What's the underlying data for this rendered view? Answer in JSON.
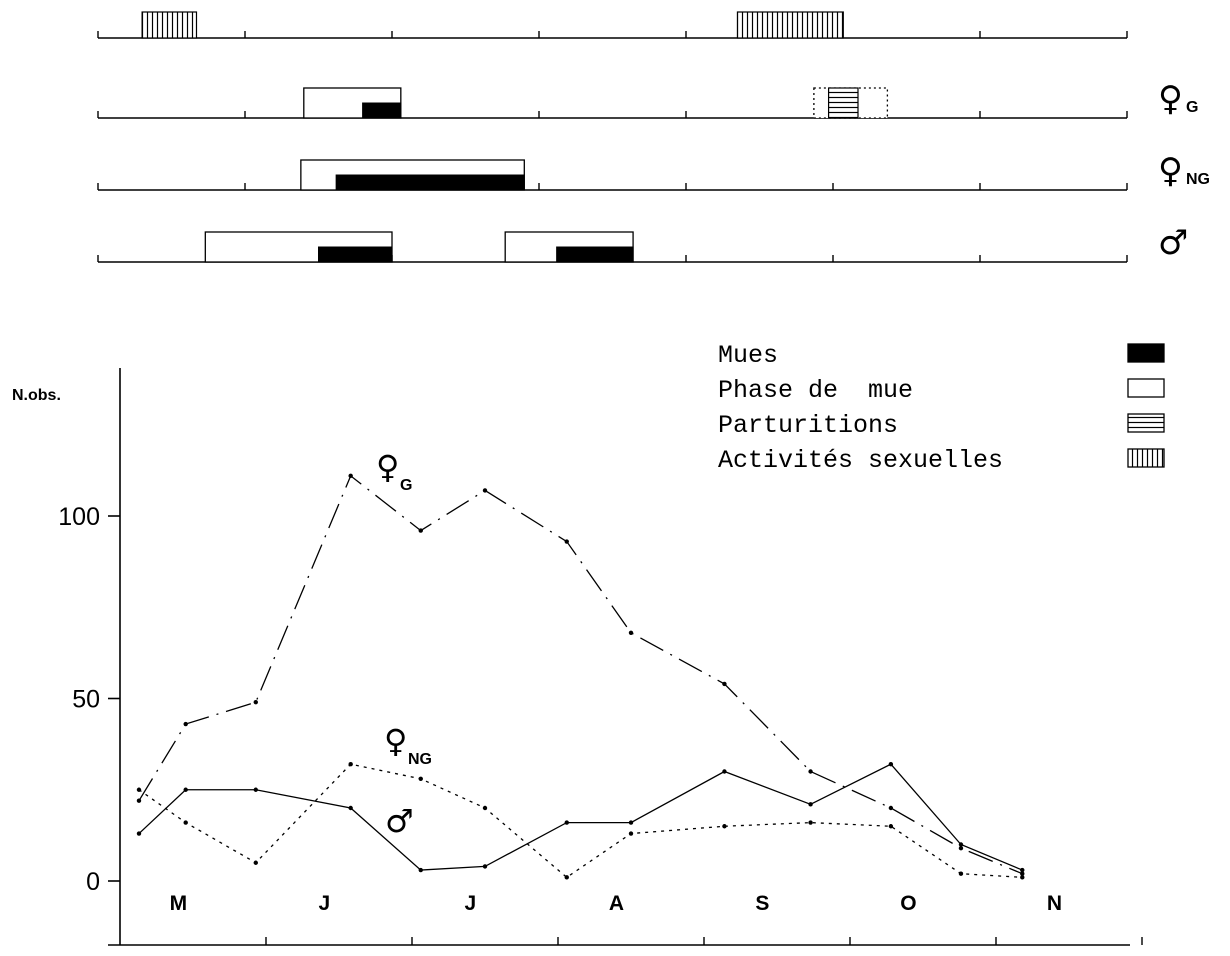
{
  "chart_data": [
    {
      "type": "timeline",
      "months": [
        "M",
        "J",
        "J",
        "A",
        "S",
        "O",
        "N"
      ],
      "legend": [
        {
          "label": "Mues",
          "pattern": "solid"
        },
        {
          "label": "Phase de  mue",
          "pattern": "open"
        },
        {
          "label": "Parturitions",
          "pattern": "horizontal-hatch"
        },
        {
          "label": "Activités sexuelles",
          "pattern": "vertical-hatch"
        }
      ],
      "rows": [
        {
          "label": "",
          "sex": "",
          "subscript": "",
          "bars": [
            {
              "kind": "activite_sexuelle",
              "start": 0.3,
              "end": 0.67
            },
            {
              "kind": "activite_sexuelle",
              "start": 4.35,
              "end": 5.07
            }
          ]
        },
        {
          "label": "G",
          "sex": "♀",
          "subscript": "G",
          "bars": [
            {
              "kind": "phase_mue",
              "start": 1.4,
              "end": 2.06
            },
            {
              "kind": "mue",
              "start": 1.8,
              "end": 2.06
            },
            {
              "kind": "phase_mue",
              "start": 4.87,
              "end": 5.37,
              "dotted": true
            },
            {
              "kind": "parturition",
              "start": 4.97,
              "end": 5.17
            }
          ]
        },
        {
          "label": "NG",
          "sex": "♀",
          "subscript": "NG",
          "bars": [
            {
              "kind": "phase_mue",
              "start": 1.38,
              "end": 2.9
            },
            {
              "kind": "mue",
              "start": 1.62,
              "end": 2.9
            }
          ]
        },
        {
          "label": "",
          "sex": "♂",
          "subscript": "",
          "bars": [
            {
              "kind": "phase_mue",
              "start": 0.73,
              "end": 2.0
            },
            {
              "kind": "mue",
              "start": 1.5,
              "end": 2.0
            },
            {
              "kind": "phase_mue",
              "start": 2.77,
              "end": 3.64
            },
            {
              "kind": "mue",
              "start": 3.12,
              "end": 3.64
            }
          ]
        }
      ]
    },
    {
      "type": "line",
      "ylabel": "N.obs.",
      "yticks": [
        0,
        50,
        100
      ],
      "ylim": [
        0,
        140
      ],
      "categories": [
        "M",
        "J",
        "J",
        "A",
        "S",
        "O",
        "N"
      ],
      "series": [
        {
          "label_sex": "♀",
          "label_sub": "G",
          "style": "dash-dot",
          "x": [
            0.13,
            0.45,
            0.93,
            1.58,
            2.06,
            2.5,
            3.06,
            3.5,
            4.14,
            4.73,
            5.28,
            5.76,
            6.18
          ],
          "y": [
            22,
            43,
            49,
            111,
            96,
            107,
            93,
            68,
            54,
            30,
            20,
            9,
            2
          ]
        },
        {
          "label_sex": "♀",
          "label_sub": "NG",
          "style": "dotted",
          "x": [
            0.13,
            0.45,
            0.93,
            1.58,
            2.06,
            2.5,
            3.06,
            3.5,
            4.14,
            4.73,
            5.28,
            5.76,
            6.18
          ],
          "y": [
            25,
            16,
            5,
            32,
            28,
            20,
            1,
            13,
            15,
            16,
            15,
            2,
            1
          ]
        },
        {
          "label_sex": "♂",
          "label_sub": "",
          "style": "solid",
          "x": [
            0.13,
            0.45,
            0.93,
            1.58,
            2.06,
            2.5,
            3.06,
            3.5,
            4.14,
            4.73,
            5.28,
            5.76,
            6.18
          ],
          "y": [
            13,
            25,
            25,
            20,
            3,
            4,
            16,
            16,
            30,
            21,
            32,
            10,
            3
          ]
        }
      ]
    }
  ]
}
